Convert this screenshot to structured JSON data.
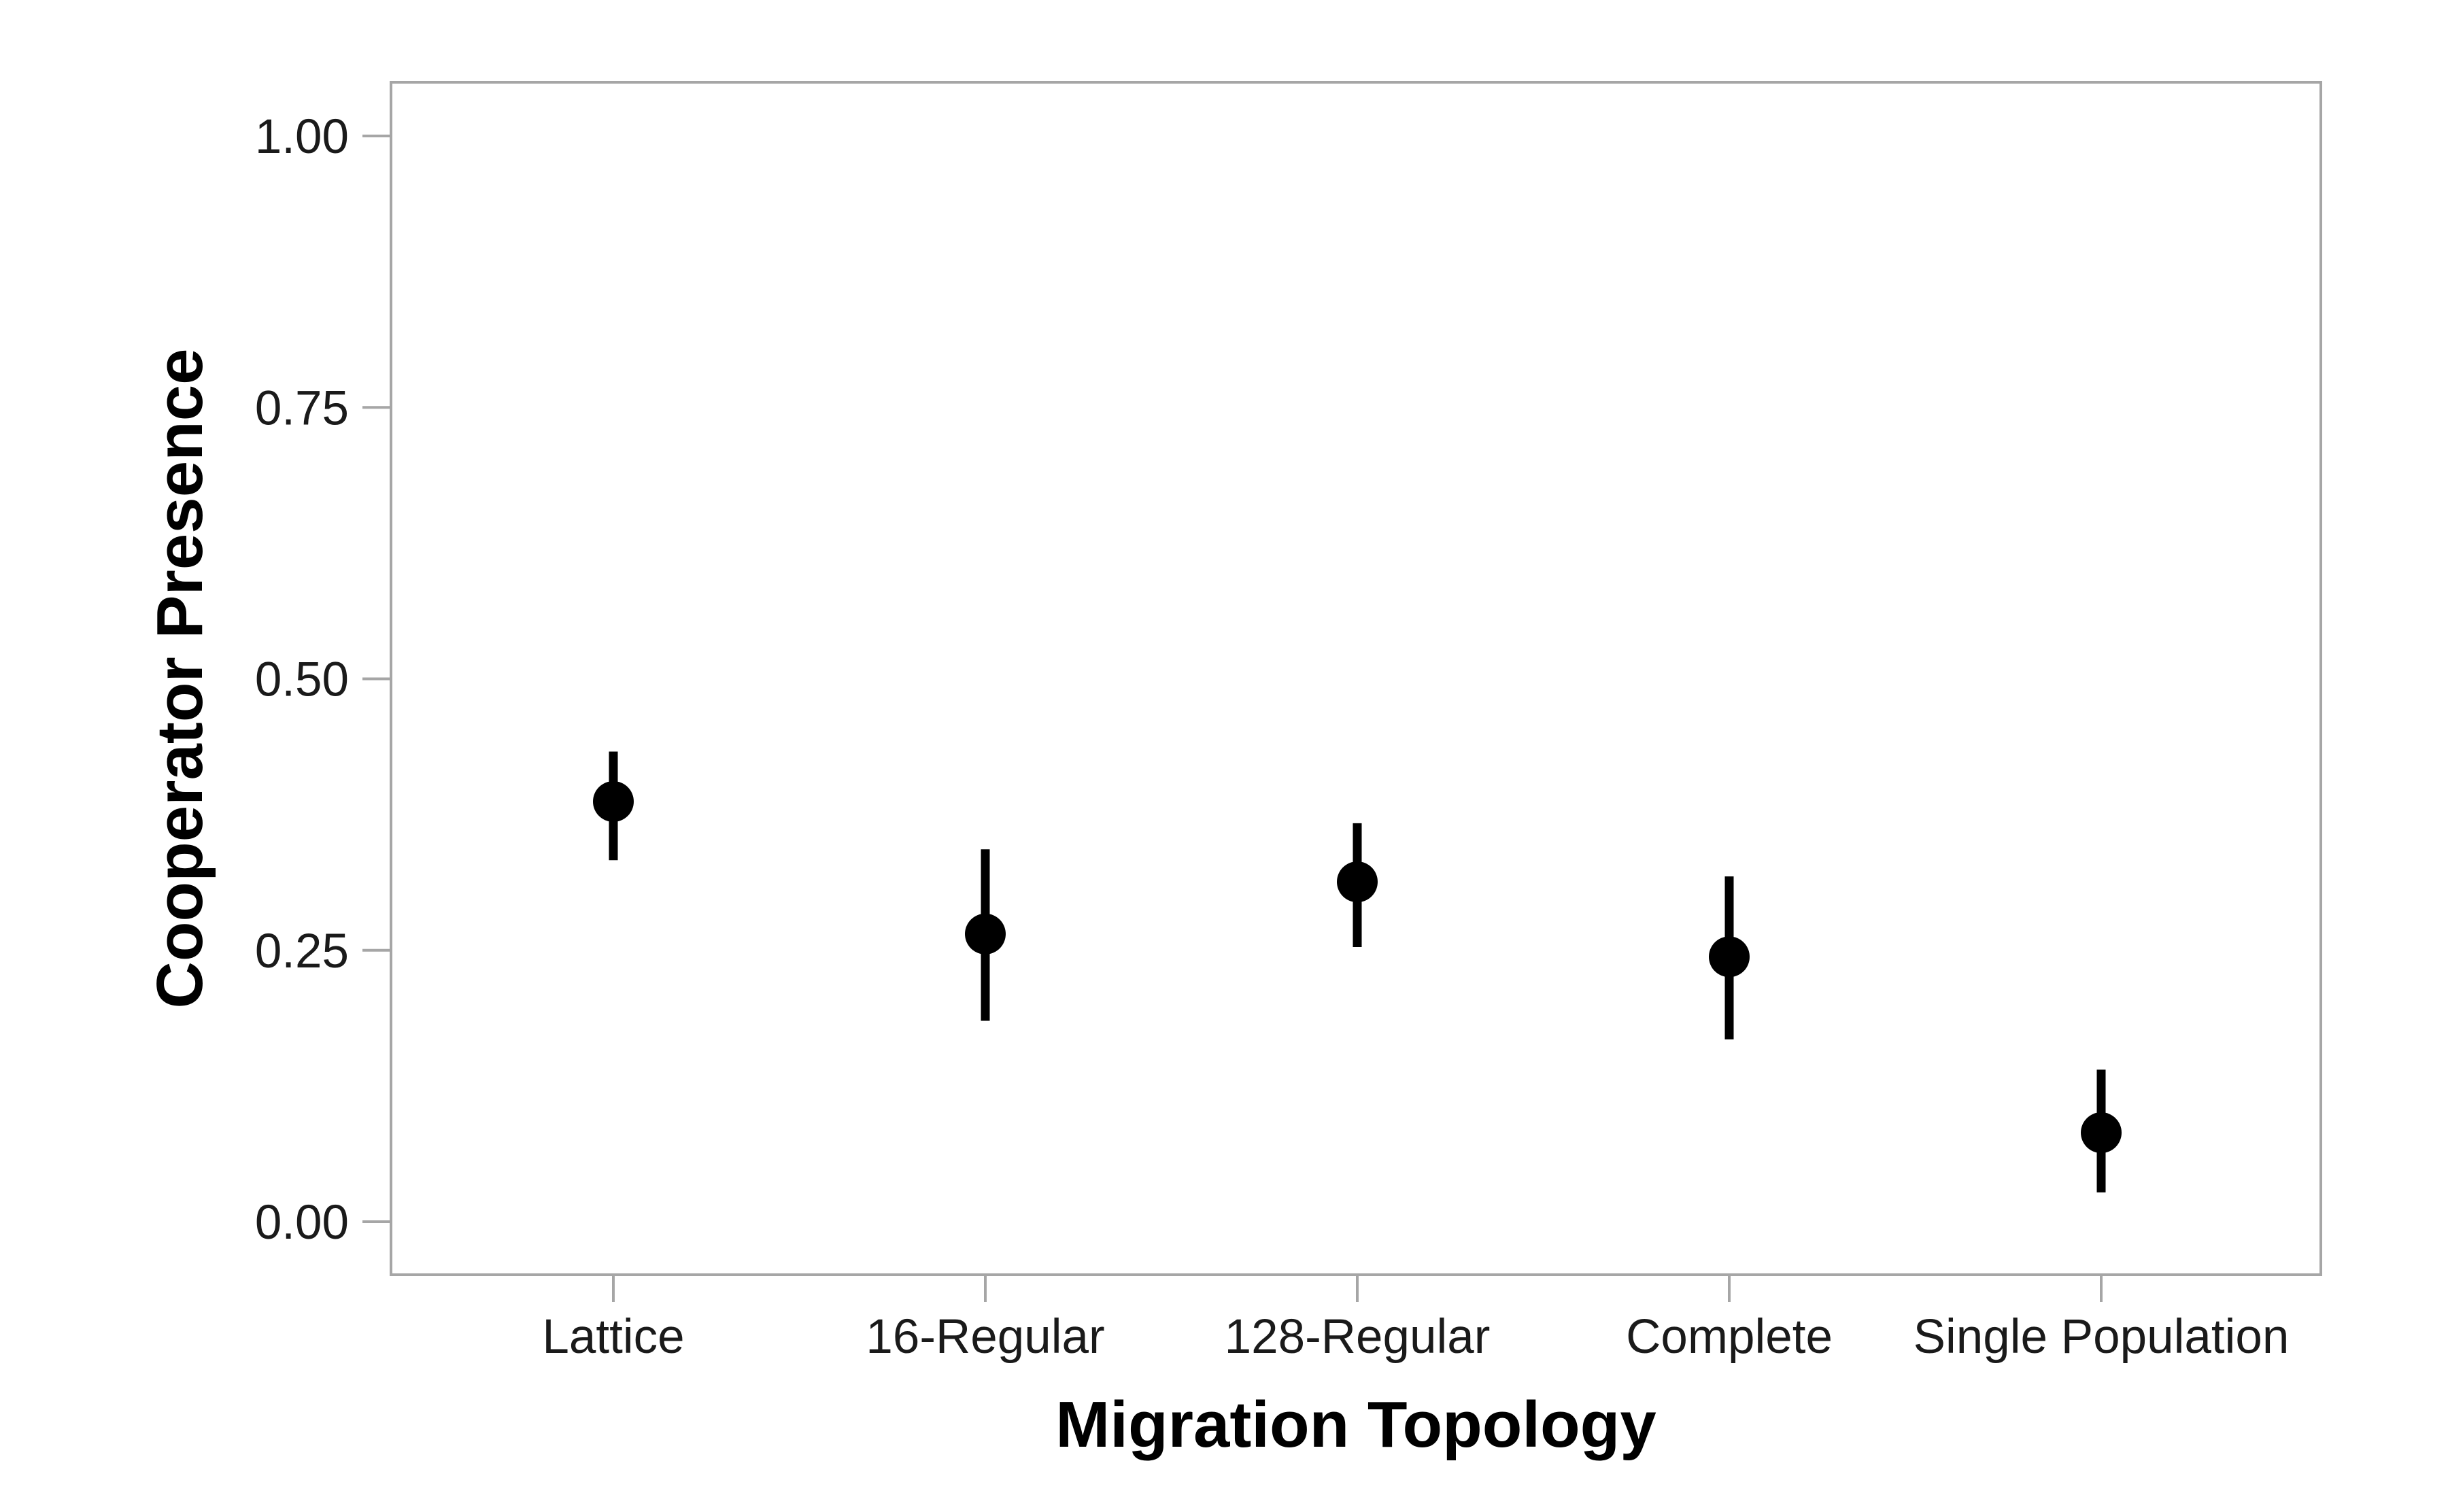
{
  "chart_data": {
    "type": "scatter",
    "xlabel": "Migration Topology",
    "ylabel": "Cooperator Presence",
    "categories": [
      "Lattice",
      "16-Regular",
      "128-Regular",
      "Complete",
      "Single Population"
    ],
    "values": [
      0.387,
      0.265,
      0.313,
      0.244,
      0.082
    ],
    "error_low": [
      0.333,
      0.185,
      0.253,
      0.168,
      0.027
    ],
    "error_high": [
      0.433,
      0.343,
      0.367,
      0.318,
      0.14
    ],
    "ylim": [
      -0.048,
      1.05
    ],
    "yticks": [
      0.0,
      0.25,
      0.5,
      0.75,
      1.0
    ],
    "ytick_labels": [
      "0.00",
      "0.25",
      "0.50",
      "0.75",
      "1.00"
    ],
    "grid": false,
    "legend": false,
    "colors": {
      "marker": "#000000",
      "frame": "#a6a6a6",
      "tick_text": "#1a1a1a"
    }
  }
}
